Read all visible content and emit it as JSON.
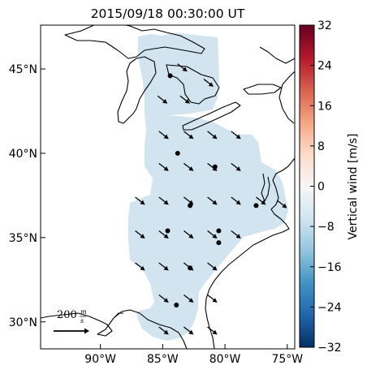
{
  "title": "2015/09/18 00:30:00 UT",
  "map": {
    "lat_ticks": [
      {
        "value": 45,
        "label": "45°N"
      },
      {
        "value": 40,
        "label": "40°N"
      },
      {
        "value": 35,
        "label": "35°N"
      },
      {
        "value": 30,
        "label": "30°N"
      }
    ],
    "lon_ticks": [
      {
        "value": -90,
        "label": "90°W"
      },
      {
        "value": -85,
        "label": "85°W"
      },
      {
        "value": -80,
        "label": "80°W"
      },
      {
        "value": -75,
        "label": "75°W"
      }
    ],
    "scale_label": "200",
    "scale_unit_top": "m",
    "scale_unit_bottom": "s",
    "field_color": "#d2e4f0",
    "coast_color": "#000000",
    "arrows": [
      [
        -83.8,
        45.3
      ],
      [
        -81.7,
        44.4
      ],
      [
        -85.4,
        43.4
      ],
      [
        -83.6,
        43.4
      ],
      [
        -85.3,
        41.3
      ],
      [
        -83.3,
        41.3
      ],
      [
        -81.4,
        41.3
      ],
      [
        -79.5,
        41.3
      ],
      [
        -85.3,
        39.4
      ],
      [
        -83.3,
        39.4
      ],
      [
        -81.4,
        39.4
      ],
      [
        -79.5,
        39.4
      ],
      [
        -87.2,
        37.4
      ],
      [
        -85.3,
        37.4
      ],
      [
        -83.3,
        37.4
      ],
      [
        -81.4,
        37.4
      ],
      [
        -79.5,
        37.4
      ],
      [
        -87.2,
        35.4
      ],
      [
        -85.3,
        35.4
      ],
      [
        -83.3,
        35.4
      ],
      [
        -81.4,
        35.4
      ],
      [
        -79.5,
        35.4
      ],
      [
        -87.2,
        33.5
      ],
      [
        -85.3,
        33.5
      ],
      [
        -83.3,
        33.5
      ],
      [
        -81.4,
        33.5
      ],
      [
        -85.3,
        31.6
      ],
      [
        -83.3,
        31.6
      ],
      [
        -81.4,
        31.6
      ],
      [
        -85.3,
        29.7
      ],
      [
        -83.3,
        29.7
      ],
      [
        -81.4,
        29.7
      ],
      [
        -77.5,
        37.4
      ],
      [
        -75.8,
        37.2
      ]
    ],
    "stations": [
      [
        -84.4,
        44.6
      ],
      [
        -83.8,
        40.0
      ],
      [
        -80.8,
        39.2
      ],
      [
        -82.8,
        36.9
      ],
      [
        -77.5,
        36.9
      ],
      [
        -84.6,
        35.4
      ],
      [
        -80.5,
        35.4
      ],
      [
        -80.5,
        34.7
      ],
      [
        -82.8,
        33.2
      ],
      [
        -83.9,
        31.0
      ]
    ]
  },
  "colorbar": {
    "label": "Vertical wind [m/s]",
    "min": -32,
    "max": 32,
    "ticks": [
      "32",
      "24",
      "16",
      "8",
      "0",
      "−8",
      "−16",
      "−24",
      "−32"
    ],
    "colormap": [
      "#053061",
      "#2166ac",
      "#4393c3",
      "#92c5de",
      "#d1e5f0",
      "#f7f7f7",
      "#fddbc7",
      "#f4a582",
      "#d6604d",
      "#b2182b",
      "#67001f"
    ]
  }
}
